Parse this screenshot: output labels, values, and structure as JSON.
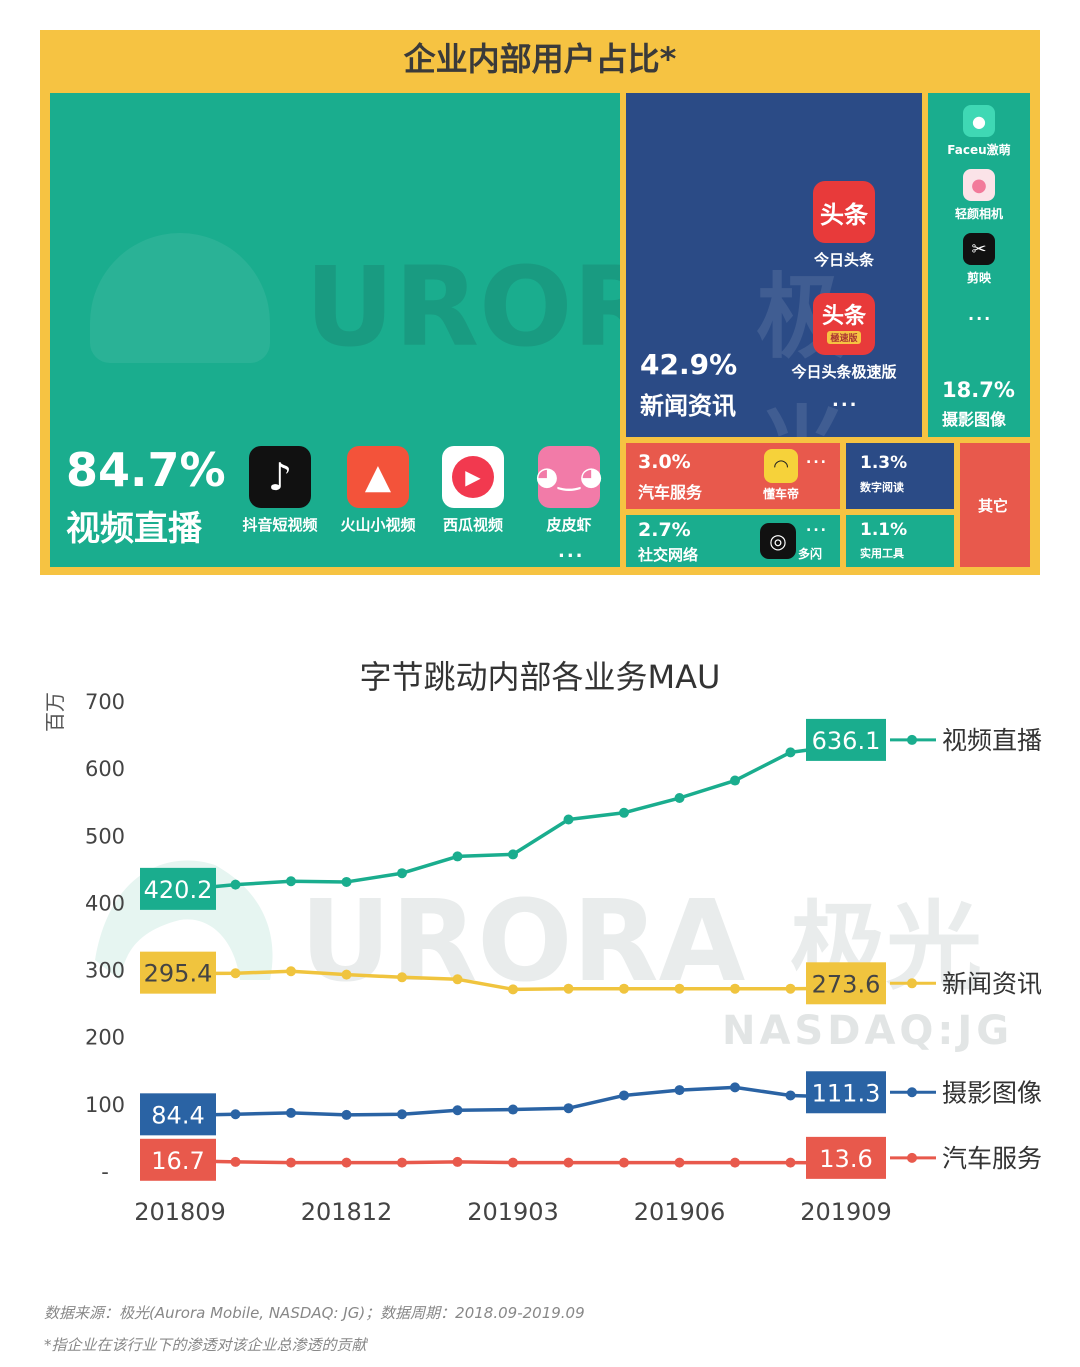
{
  "treemap": {
    "title": "企业内部用户占比*",
    "tiles": {
      "video": {
        "pct": "84.7%",
        "name": "视频直播",
        "color": "#1aad8e",
        "apps": [
          "抖音短视频",
          "火山小视频",
          "西瓜视频",
          "皮皮虾"
        ],
        "more": "..."
      },
      "news": {
        "pct": "42.9%",
        "name": "新闻资讯",
        "color": "#2b4b86",
        "apps": [
          "今日头条",
          "今日头条极速版"
        ],
        "more": "...",
        "icon_text": "头条",
        "icon_sub": "極速版"
      },
      "photo": {
        "pct": "18.7%",
        "name": "摄影图像",
        "color": "#1aad8e",
        "apps": [
          "Faceu激萌",
          "轻颜相机",
          "剪映"
        ],
        "more": "..."
      },
      "auto": {
        "pct": "3.0%",
        "name": "汽车服务",
        "color": "#e8594c",
        "apps": [
          "懂车帝"
        ],
        "more": "..."
      },
      "reading": {
        "pct": "1.3%",
        "name": "数字阅读",
        "color": "#2b4b86"
      },
      "other": {
        "name": "其它",
        "color": "#e8594c"
      },
      "social": {
        "pct": "2.7%",
        "name": "社交网络",
        "color": "#1aad8e",
        "apps": [
          "多闪"
        ],
        "more": "..."
      },
      "tools": {
        "pct": "1.1%",
        "name": "实用工具",
        "color": "#1aad8e"
      }
    }
  },
  "watermark": {
    "brand": "URORA",
    "brand_cn": "极光",
    "ticker": "NASDAQ:JG"
  },
  "chart_data": {
    "type": "line",
    "title": "字节跳动内部各业务MAU",
    "ylabel": "百万",
    "ylim": [
      0,
      700
    ],
    "yticks": [
      {
        "value": 0,
        "label": "-"
      },
      {
        "value": 100,
        "label": "100"
      },
      {
        "value": 200,
        "label": "200"
      },
      {
        "value": 300,
        "label": "300"
      },
      {
        "value": 400,
        "label": "400"
      },
      {
        "value": 500,
        "label": "500"
      },
      {
        "value": 600,
        "label": "600"
      },
      {
        "value": 700,
        "label": "700"
      }
    ],
    "x": [
      "201809",
      "201810",
      "201811",
      "201812",
      "201901",
      "201902",
      "201903",
      "201904",
      "201905",
      "201906",
      "201907",
      "201908",
      "201909"
    ],
    "xtick_labels": [
      "201809",
      "201812",
      "201903",
      "201906",
      "201909"
    ],
    "series": [
      {
        "name": "视频直播",
        "color": "#1aad8e",
        "values": [
          420.2,
          428,
          433,
          432,
          445,
          470,
          473,
          525,
          535,
          557,
          583,
          625,
          636.1
        ],
        "start_label": "420.2",
        "end_label": "636.1"
      },
      {
        "name": "新闻资讯",
        "color": "#f0c43e",
        "values": [
          295.4,
          296,
          299,
          294,
          290,
          287,
          272,
          273,
          273,
          273,
          273,
          273,
          273.6
        ],
        "start_label": "295.4",
        "end_label": "273.6"
      },
      {
        "name": "摄影图像",
        "color": "#2a63a4",
        "values": [
          84.4,
          86,
          88,
          85,
          86,
          92,
          93,
          95,
          114,
          122,
          126,
          114,
          111.3
        ],
        "start_label": "84.4",
        "end_label": "111.3"
      },
      {
        "name": "汽车服务",
        "color": "#e8594c",
        "values": [
          16.7,
          15,
          14,
          14,
          14,
          15,
          14,
          14,
          14,
          14,
          14,
          14,
          13.6
        ],
        "start_label": "16.7",
        "end_label": "13.6"
      }
    ]
  },
  "footnotes": {
    "source": "数据来源：极光(Aurora  Mobile, NASDAQ: JG)；数据周期：2018.09-2019.09",
    "note": "*指企业在该行业下的渗透对该企业总渗透的贡献"
  }
}
